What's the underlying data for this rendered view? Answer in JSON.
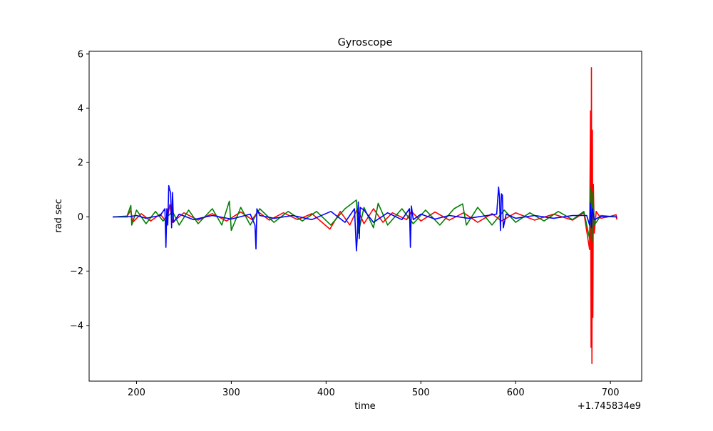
{
  "chart_data": {
    "type": "line",
    "title": "Gyroscope",
    "xlabel": "time",
    "ylabel": "rad sec",
    "x_offset_label": "+1.745834e9",
    "xlim": [
      150,
      733
    ],
    "ylim": [
      -6.05,
      6.1
    ],
    "x_ticks": [
      200,
      300,
      400,
      500,
      600,
      700
    ],
    "y_ticks": [
      -4,
      -2,
      0,
      2,
      4,
      6
    ],
    "x_tick_labels": [
      "200",
      "300",
      "400",
      "500",
      "600",
      "700"
    ],
    "y_tick_labels": [
      "−4",
      "−2",
      "0",
      "2",
      "4",
      "6"
    ],
    "grid": false,
    "legend": "none",
    "series": [
      {
        "color": "#ff0000",
        "points": [
          [
            175,
            0
          ],
          [
            190,
            0.02
          ],
          [
            194,
            0.25
          ],
          [
            196,
            -0.2
          ],
          [
            205,
            0.12
          ],
          [
            215,
            -0.15
          ],
          [
            225,
            0.1
          ],
          [
            232,
            -0.2
          ],
          [
            235,
            0.45
          ],
          [
            238,
            -0.2
          ],
          [
            250,
            0.15
          ],
          [
            265,
            -0.12
          ],
          [
            280,
            0.12
          ],
          [
            295,
            -0.15
          ],
          [
            310,
            0.18
          ],
          [
            322,
            -0.1
          ],
          [
            328,
            0.2
          ],
          [
            340,
            -0.12
          ],
          [
            355,
            0.15
          ],
          [
            370,
            -0.1
          ],
          [
            385,
            0.12
          ],
          [
            404,
            -0.45
          ],
          [
            415,
            0.2
          ],
          [
            425,
            -0.3
          ],
          [
            433,
            0.3
          ],
          [
            440,
            -0.25
          ],
          [
            450,
            0.3
          ],
          [
            460,
            -0.2
          ],
          [
            470,
            0.15
          ],
          [
            485,
            -0.1
          ],
          [
            490,
            0.2
          ],
          [
            500,
            -0.15
          ],
          [
            515,
            0.18
          ],
          [
            530,
            -0.12
          ],
          [
            545,
            0.15
          ],
          [
            560,
            -0.2
          ],
          [
            575,
            0.12
          ],
          [
            585,
            -0.15
          ],
          [
            600,
            0.15
          ],
          [
            620,
            -0.12
          ],
          [
            640,
            0.1
          ],
          [
            660,
            -0.12
          ],
          [
            672,
            0.15
          ],
          [
            678,
            -1.2
          ],
          [
            679,
            3.9
          ],
          [
            679.6,
            -4.8
          ],
          [
            680,
            5.5
          ],
          [
            680.5,
            -5.4
          ],
          [
            681,
            3.2
          ],
          [
            681.5,
            -3.7
          ],
          [
            682,
            1.2
          ],
          [
            683,
            -0.6
          ],
          [
            685,
            0.2
          ],
          [
            690,
            -0.05
          ],
          [
            700,
            0.02
          ],
          [
            706,
            0.08
          ],
          [
            706.5,
            -0.08
          ],
          [
            707,
            0
          ]
        ]
      },
      {
        "color": "#008000",
        "points": [
          [
            175,
            0
          ],
          [
            190,
            0.03
          ],
          [
            194,
            0.42
          ],
          [
            195,
            -0.3
          ],
          [
            200,
            0.25
          ],
          [
            210,
            -0.25
          ],
          [
            220,
            0.2
          ],
          [
            228,
            -0.15
          ],
          [
            238,
            0.2
          ],
          [
            245,
            -0.3
          ],
          [
            255,
            0.25
          ],
          [
            265,
            -0.25
          ],
          [
            280,
            0.3
          ],
          [
            290,
            -0.3
          ],
          [
            298,
            0.58
          ],
          [
            300,
            -0.5
          ],
          [
            310,
            0.35
          ],
          [
            320,
            -0.3
          ],
          [
            330,
            0.3
          ],
          [
            345,
            -0.2
          ],
          [
            360,
            0.2
          ],
          [
            375,
            -0.15
          ],
          [
            390,
            0.2
          ],
          [
            405,
            -0.3
          ],
          [
            420,
            0.3
          ],
          [
            432,
            0.62
          ],
          [
            434,
            -0.6
          ],
          [
            440,
            0.35
          ],
          [
            450,
            -0.4
          ],
          [
            455,
            0.5
          ],
          [
            465,
            -0.3
          ],
          [
            480,
            0.3
          ],
          [
            492,
            -0.25
          ],
          [
            505,
            0.25
          ],
          [
            520,
            -0.3
          ],
          [
            535,
            0.3
          ],
          [
            544,
            0.48
          ],
          [
            548,
            -0.3
          ],
          [
            560,
            0.35
          ],
          [
            575,
            -0.3
          ],
          [
            588,
            0.25
          ],
          [
            600,
            -0.2
          ],
          [
            615,
            0.15
          ],
          [
            630,
            -0.15
          ],
          [
            645,
            0.2
          ],
          [
            660,
            -0.1
          ],
          [
            672,
            0.2
          ],
          [
            678,
            -0.8
          ],
          [
            679.5,
            1.1
          ],
          [
            680.5,
            -0.9
          ],
          [
            681.5,
            0.9
          ],
          [
            683,
            -0.3
          ],
          [
            690,
            0.05
          ],
          [
            707,
            0
          ]
        ]
      },
      {
        "color": "#0000ff",
        "points": [
          [
            175,
            0
          ],
          [
            190,
            0
          ],
          [
            200,
            0.05
          ],
          [
            210,
            -0.05
          ],
          [
            225,
            0.05
          ],
          [
            230,
            0.3
          ],
          [
            231,
            -1.12
          ],
          [
            232,
            0.3
          ],
          [
            233,
            -0.3
          ],
          [
            234,
            1.15
          ],
          [
            235,
            1.0
          ],
          [
            236,
            0.9
          ],
          [
            237,
            -0.4
          ],
          [
            238,
            0.9
          ],
          [
            239,
            -0.2
          ],
          [
            245,
            0.1
          ],
          [
            260,
            -0.1
          ],
          [
            280,
            0.05
          ],
          [
            300,
            -0.08
          ],
          [
            320,
            0.1
          ],
          [
            325,
            -0.3
          ],
          [
            326,
            -1.18
          ],
          [
            327,
            0.3
          ],
          [
            330,
            0.05
          ],
          [
            345,
            -0.05
          ],
          [
            365,
            0.05
          ],
          [
            385,
            -0.1
          ],
          [
            405,
            0.2
          ],
          [
            420,
            -0.2
          ],
          [
            430,
            0.3
          ],
          [
            432,
            -1.25
          ],
          [
            433,
            -0.7
          ],
          [
            434,
            0.55
          ],
          [
            435,
            -0.8
          ],
          [
            436,
            0.35
          ],
          [
            440,
            0.25
          ],
          [
            450,
            -0.2
          ],
          [
            465,
            0.15
          ],
          [
            480,
            -0.1
          ],
          [
            488,
            0.3
          ],
          [
            489,
            -1.12
          ],
          [
            490,
            0.4
          ],
          [
            492,
            -0.1
          ],
          [
            500,
            0.1
          ],
          [
            515,
            -0.08
          ],
          [
            530,
            0.05
          ],
          [
            550,
            -0.05
          ],
          [
            570,
            0.05
          ],
          [
            580,
            0.1
          ],
          [
            582,
            1.1
          ],
          [
            583,
            0.7
          ],
          [
            584,
            -0.5
          ],
          [
            585,
            0.85
          ],
          [
            586,
            0.8
          ],
          [
            587,
            -0.4
          ],
          [
            590,
            0.1
          ],
          [
            600,
            -0.05
          ],
          [
            620,
            0.05
          ],
          [
            640,
            -0.05
          ],
          [
            660,
            0.05
          ],
          [
            675,
            0.05
          ],
          [
            678,
            -0.3
          ],
          [
            679,
            0.5
          ],
          [
            680,
            -0.4
          ],
          [
            681,
            0.3
          ],
          [
            683,
            -0.1
          ],
          [
            690,
            0.02
          ],
          [
            707,
            0
          ]
        ]
      }
    ]
  }
}
